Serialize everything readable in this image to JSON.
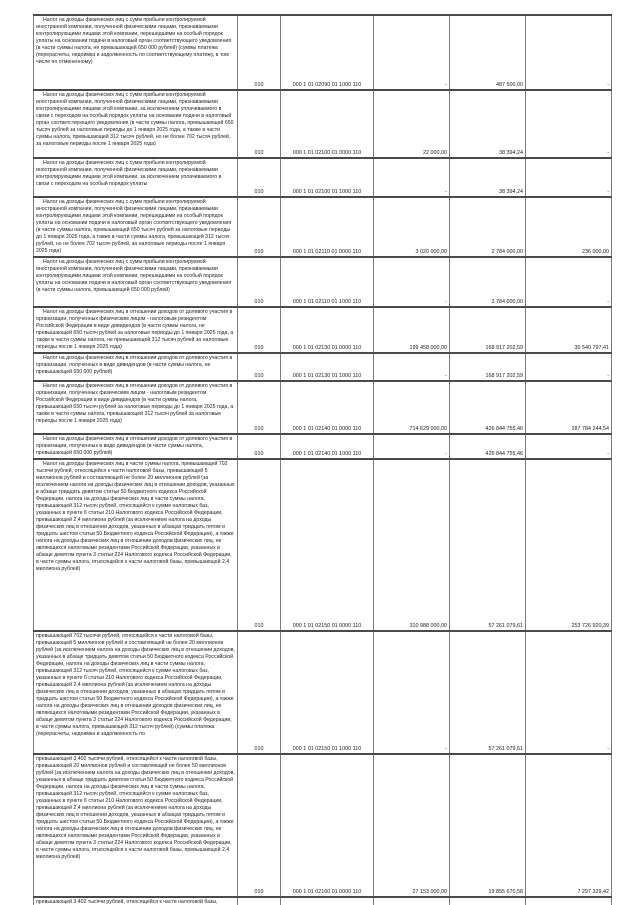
{
  "table": {
    "rows": [
      {
        "description": "Налог на доходы физических лиц с сумм прибыли контролируемой иностранной компании, полученной физическими лицами, признаваемыми контролирующими лицами этой компании, перешедшими на особый порядок уплаты на основании подачи в налоговый орган соответствующего уведомления (в части суммы налога, не превышающей 650 000 рублей) (суммы платежа (перерасчеты, недоимка и задолженность по соответствующему платежу, в том числе по отмененному)",
        "line_code": "010",
        "kbk": "000 1 01 02090 01 1000 110",
        "amount1": "-",
        "amount2": "487 500,00",
        "amount3": "-"
      },
      {
        "description": "Налог на доходы физических лиц с сумм прибыли контролируемой иностранной компании, полученной физическими лицами, признаваемыми контролирующими лицами этой компании, за исключением уплачиваемого в связи с переходом на особый порядок уплаты на основании подачи в налоговый орган соответствующего уведомления (в части суммы налога, превышающей 650 тысяч рублей за налоговые периоды до 1 января 2025 года, а также в части суммы налога, превышающей 312 тысяч рублей, но не более 702 тысяч рублей, за налоговые периоды после 1 января 2025 года)",
        "line_code": "010",
        "kbk": "000 1 01 02100 01 0000 110",
        "amount1": "22 000,00",
        "amount2": "38 394,24",
        "amount3": "-"
      },
      {
        "description": "Налог на доходы физических лиц с сумм прибыли контролируемой иностранной компании, полученной физическими лицами, признаваемыми контролирующими лицами этой компании, за исключением уплачиваемого в связи с переходом на особый порядок уплаты",
        "line_code": "010",
        "kbk": "000 1 01 02100 01 1000 110",
        "amount1": "-",
        "amount2": "38 394,24",
        "amount3": "-"
      },
      {
        "description": "Налог на доходы физических лиц с сумм прибыли контролируемой иностранной компании, полученной физическими лицами, признаваемыми контролирующими лицами этой компании, перешедшими на особый порядок уплаты на основании подачи в налоговый орган соответствующего уведомления (в части суммы налога, превышающей 650 тысяч рублей за налоговые периоды до 1 января 2025 года, а также в части суммы налога, превышающей 312 тысяч рублей, но не более 702 тысяч рублей, за налоговые периоды после 1 января 2025 года)",
        "line_code": "010",
        "kbk": "000 1 01 02110 01 0000 110",
        "amount1": "3 020 000,00",
        "amount2": "2 784 000,00",
        "amount3": "236 000,00"
      },
      {
        "description": "Налог на доходы физических лиц с сумм прибыли контролируемой иностранной компании, полученной физическими лицами, признаваемыми контролирующими лицами этой компании, перешедшими на особый порядок уплаты на основании подачи в налоговый орган соответствующего уведомления (в части суммы налога, превышающей 650 000 рублей)",
        "line_code": "010",
        "kbk": "000 1 01 02110 01 1000 110",
        "amount1": "-",
        "amount2": "2 784 000,00",
        "amount3": "-"
      },
      {
        "description": "Налог на доходы физических лиц в отношении доходов от долевого участия в организации, полученных физическим лицом - налоговым резидентом Российской Федерации в виде дивидендов (в части суммы налога, не превышающей 650 тысяч рублей за налоговые периоды до 1 января 2025 года, а также в части суммы налога, не превышающей 312 тысяч рублей за налоговые периоды после 1 января 2025 года)",
        "line_code": "010",
        "kbk": "000 1 01 02130 01 0000 110",
        "amount1": "199 458 000,00",
        "amount2": "168 917 202,59",
        "amount3": "30 540 797,41"
      },
      {
        "description": "Налог на доходы физических лиц в отношении доходов от долевого участия в организации, полученных в виде дивидендов (в части суммы налога, не превышающей 650 000 рублей)",
        "line_code": "010",
        "kbk": "000 1 01 02130 01 1000 110",
        "amount1": "-",
        "amount2": "168 917 202,59",
        "amount3": "-"
      },
      {
        "description": "Налог на доходы физических лиц в отношении доходов от долевого участия в организации, полученных физическим лицом - налоговым резидентом Российской Федерации в виде дивидендов (в части суммы налога, превышающей 650 тысяч рублей за налоговые периоды до 1 января 2025 года, а также в части суммы налога, превышающей 312 тысяч рублей за налоговые периоды после 1 января 2025 года)",
        "line_code": "010",
        "kbk": "000 1 01 02140 01 0000 110",
        "amount1": "714 629 000,00",
        "amount2": "426 844 755,46",
        "amount3": "287 784 244,54"
      },
      {
        "description": "Налог на доходы физических лиц в отношении доходов от долевого участия в организации, полученных в виде дивидендов (в части суммы налога, превышающей 650 000 рублей)",
        "line_code": "010",
        "kbk": "000 1 01 02140 01 1000 110",
        "amount1": "-",
        "amount2": "426 844 755,46",
        "amount3": "-"
      },
      {
        "description": "Налог на доходы физических лиц в части суммы налога, превышающей 702 тысячи рублей, относящейся к части налоговой базы, превышающей 5 миллионов рублей и составляющей не более 20 миллионов рублей (за исключением налога на доходы физических лиц в отношении доходов, указанных в абзаце тридцать девятом статьи 50 Бюджетного кодекса Российской Федерации, налога на доходы физических лиц в части суммы налога, превышающей 312 тысяч рублей, относящейся к сумме налоговых баз, указанных в пункте 6 статьи 210 Налогового кодекса Российской Федерации, превышающей 2,4 миллиона рублей (за исключением налога на доходы физических лиц в отношении доходов, указанных в абзацах тридцать пятом и тридцать шестом статьи 50 Бюджетного кодекса Российской Федерации), а также налога на доходы физических лиц в отношении доходов физических лиц, не являющихся налоговыми резидентами Российской Федерации, указанных в абзаце девятом пункта 3 статьи 224 Налогового кодекса Российской Федерации, в части суммы налога, относящейся к части налоговой базы, превышающей 2,4 миллиона рублей)",
        "line_code": "010",
        "kbk": "000 1 01 02150 01 0000 110",
        "amount1": "310 988 000,00",
        "amount2": "57 261 079,61",
        "amount3": "253 726 920,39"
      },
      {
        "description": "превышающей 702 тысячи рублей, относящейся к части налоговой базы, превышающей 5 миллионов рублей и составляющей не более 20 миллионов рублей (за исключением налога на доходы физических лиц в отношении доходов, указанных в абзаце тридцать девятом статьи 50 Бюджетного кодекса Российской Федерации, налога на доходы физических лиц в части суммы налога, превышающей 312 тысяч рублей, относящейся к сумме налоговых баз, указанных в пункте 6 статьи 210 Налогового кодекса Российской Федерации, превышающей 2,4 миллиона рублей (за исключением налога на доходы физических лиц в отношении доходов, указанных в абзацах тридцать пятом и тридцать шестом статьи 50 Бюджетного кодекса Российской Федерации), а также налога на доходы физических лиц в отношении доходов физических лиц, не являющихся налоговыми резидентами Российской Федерации, указанных в абзаце девятом пункта 3 статьи 224 Налогового кодекса Российской Федерации, в части суммы налога, превышающей 312 тысяч рублей) (суммы платежа (перерасчеты, недоимка и задолженность по",
        "line_code": "010",
        "kbk": "000 1 01 02150 01 1000 110",
        "amount1": "-",
        "amount2": "57 261 079,61",
        "amount3": "-"
      },
      {
        "description": "превышающей 3 402 тысячи рублей, относящейся к части налоговой базы, превышающей 20 миллионов рублей и составляющей не более 50 миллионов рублей (за исключением налога на доходы физических лиц в отношении доходов, указанных в абзаце тридцать девятом статьи 50 Бюджетного кодекса Российской Федерации, налога на доходы физических лиц в части суммы налога, превышающей 312 тысяч рублей, относящейся к сумме налоговых баз, указанных в пункте 6 статьи 210 Налогового кодекса Российской Федерации, превышающей 2,4 миллиона рублей (за исключением налога на доходы физических лиц в отношении доходов, указанных в абзацах тридцать пятом и тридцать шестом статьи 50 Бюджетного кодекса Российской Федерации), а также налога на доходы физических лиц в отношении доходов физических лиц, не являющихся налоговыми резидентами Российской Федерации, указанных в абзаце девятом пункта 3 статьи 224 Налогового кодекса Российской Федерации, в части суммы налога, относящейся к части налоговой базы, превышающей 2,4 миллиона рублей)",
        "line_code": "010",
        "kbk": "000 1 01 02160 01 0000 110",
        "amount1": "27 153 000,00",
        "amount2": "19 855 670,58",
        "amount3": "7 297 329,42"
      }
    ],
    "partial_next_row": {
      "description": "превышающей 3 402 тысячи рублей, относящейся к части налоговой базы, превышающей 20 миллионов рублей и составляющей не более 50 миллионов рублей (за исключением налога на доходы физических лиц в отношении доходов, указанных в абзаце тридцать девятом статьи 50 Бюджетного кодекса Российской Федерации, налога"
    }
  }
}
